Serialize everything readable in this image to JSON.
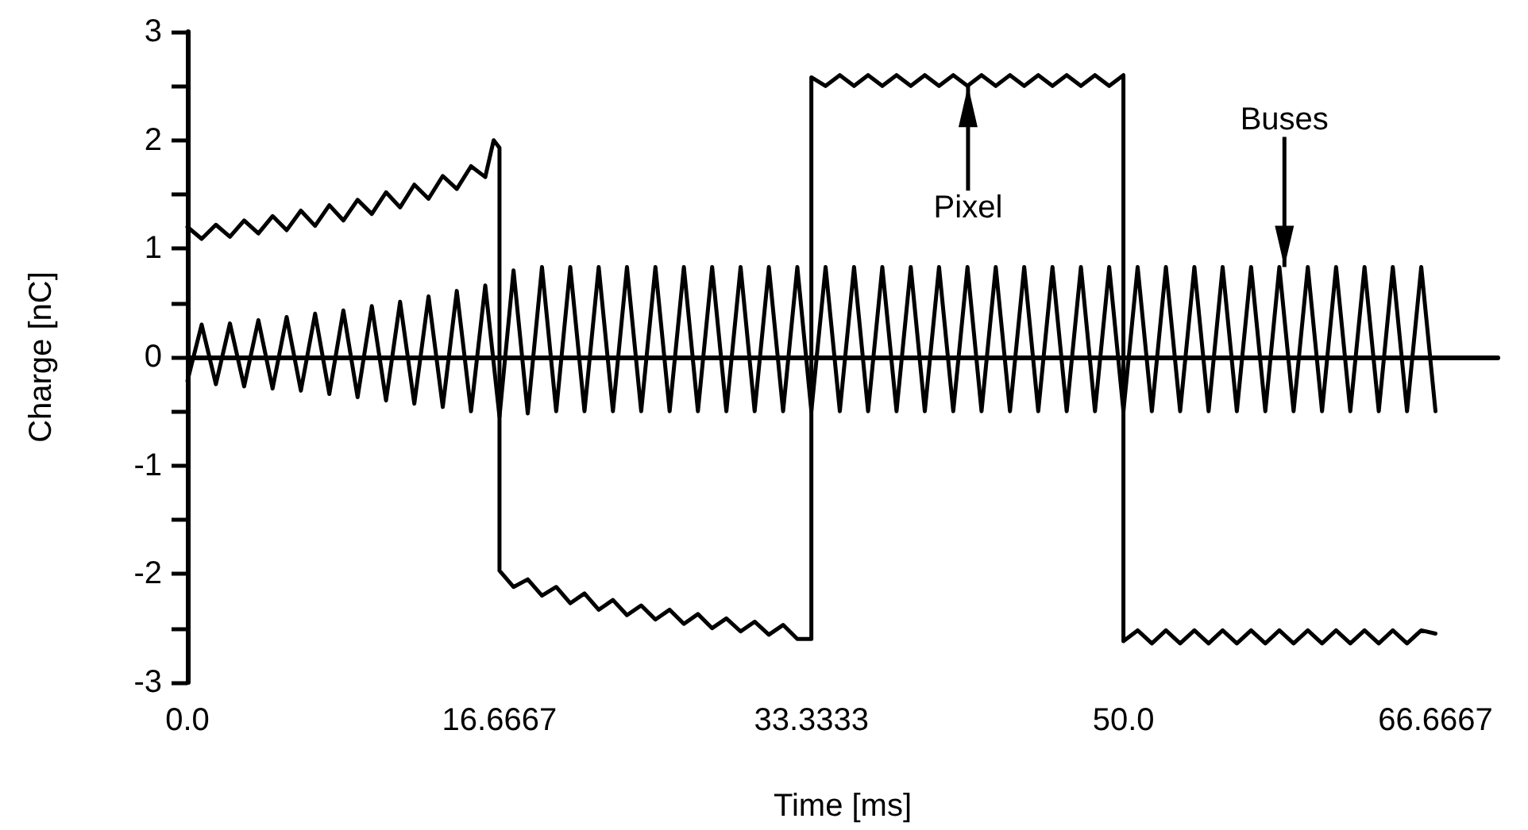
{
  "chart_data": {
    "type": "line",
    "xlabel": "Time [ms]",
    "ylabel": "Charge [nC]",
    "x": [
      0,
      0.76,
      1.52,
      2.27,
      3.03,
      3.79,
      4.55,
      5.3,
      6.06,
      6.82,
      7.58,
      8.33,
      9.09,
      9.85,
      10.61,
      11.36,
      12.12,
      12.88,
      13.64,
      14.39,
      15.15,
      15.91,
      16.67,
      17.42,
      18.18,
      18.94,
      19.7,
      20.45,
      21.21,
      21.97,
      22.73,
      23.48,
      24.24,
      25.0,
      25.76,
      26.52,
      27.27,
      28.03,
      28.79,
      29.55,
      30.3,
      31.06,
      31.82,
      32.58,
      33.33,
      34.09,
      34.85,
      35.61,
      36.36,
      37.12,
      37.88,
      38.64,
      39.39,
      40.15,
      40.91,
      41.67,
      42.42,
      43.18,
      43.94,
      44.7,
      45.45,
      46.21,
      46.97,
      47.73,
      48.48,
      49.24,
      50.0,
      50.76,
      51.52,
      52.27,
      53.03,
      53.79,
      54.55,
      55.3,
      56.06,
      56.82,
      57.58,
      58.33,
      59.09,
      59.85,
      60.61,
      61.36,
      62.12,
      62.88,
      63.64,
      64.39,
      65.15,
      65.91,
      66.67
    ],
    "series": [
      {
        "color": "#000000",
        "values": [
          -0.22,
          0.3,
          -0.25,
          0.31,
          -0.27,
          0.34,
          -0.29,
          0.37,
          -0.31,
          0.4,
          -0.34,
          0.43,
          -0.37,
          0.47,
          -0.4,
          0.51,
          -0.43,
          0.56,
          -0.46,
          0.61,
          -0.5,
          0.66,
          -0.55,
          0.8,
          -0.52,
          0.83,
          -0.5,
          0.83,
          -0.5,
          0.83,
          -0.5,
          0.83,
          -0.5,
          0.83,
          -0.5,
          0.83,
          -0.5,
          0.83,
          -0.5,
          0.83,
          -0.5,
          0.83,
          -0.5,
          0.83,
          -0.5,
          0.83,
          -0.5,
          0.83,
          -0.5,
          0.83,
          -0.5,
          0.83,
          -0.5,
          0.83,
          -0.5,
          0.83,
          -0.5,
          0.83,
          -0.5,
          0.83,
          -0.5,
          0.83,
          -0.5,
          0.83,
          -0.5,
          0.83,
          -0.5,
          0.83,
          -0.5,
          0.83,
          -0.5,
          0.83,
          -0.5,
          0.83,
          -0.5,
          0.83,
          -0.5,
          0.83,
          -0.5,
          0.83,
          -0.5,
          0.83,
          -0.5,
          0.83,
          -0.5,
          0.83,
          -0.5,
          0.83,
          -0.5
        ]
      },
      {
        "color": "#000000",
        "x": [
          0,
          0.76,
          1.52,
          2.27,
          3.03,
          3.79,
          4.55,
          5.3,
          6.06,
          6.82,
          7.58,
          8.33,
          9.09,
          9.85,
          10.61,
          11.36,
          12.12,
          12.88,
          13.64,
          14.39,
          15.15,
          15.91,
          16.36,
          16.67,
          16.67,
          17.42,
          18.18,
          18.94,
          19.7,
          20.45,
          21.21,
          21.97,
          22.73,
          23.48,
          24.24,
          25.0,
          25.76,
          26.52,
          27.27,
          28.03,
          28.79,
          29.55,
          30.3,
          31.06,
          31.82,
          32.58,
          33.33,
          33.33,
          34.09,
          34.85,
          35.61,
          36.36,
          37.12,
          37.88,
          38.64,
          39.39,
          40.15,
          40.91,
          41.67,
          42.42,
          43.18,
          43.94,
          44.7,
          45.45,
          46.21,
          46.97,
          47.73,
          48.48,
          49.24,
          50.0,
          50.0,
          50.76,
          51.52,
          52.27,
          53.03,
          53.79,
          54.55,
          55.3,
          56.06,
          56.82,
          57.58,
          58.33,
          59.09,
          59.85,
          60.61,
          61.36,
          62.12,
          62.88,
          63.64,
          64.39,
          65.15,
          65.91,
          66.67
        ],
        "values": [
          1.2,
          1.09,
          1.22,
          1.11,
          1.26,
          1.14,
          1.3,
          1.17,
          1.35,
          1.21,
          1.4,
          1.26,
          1.45,
          1.32,
          1.52,
          1.38,
          1.59,
          1.46,
          1.67,
          1.55,
          1.76,
          1.66,
          2.0,
          1.93,
          -1.97,
          -2.12,
          -2.05,
          -2.2,
          -2.12,
          -2.27,
          -2.18,
          -2.33,
          -2.24,
          -2.38,
          -2.29,
          -2.42,
          -2.33,
          -2.46,
          -2.37,
          -2.5,
          -2.41,
          -2.53,
          -2.44,
          -2.56,
          -2.47,
          -2.6,
          -2.6,
          2.58,
          2.5,
          2.6,
          2.5,
          2.6,
          2.5,
          2.6,
          2.5,
          2.6,
          2.5,
          2.6,
          2.5,
          2.6,
          2.5,
          2.6,
          2.5,
          2.6,
          2.5,
          2.6,
          2.5,
          2.6,
          2.5,
          2.6,
          -2.62,
          -2.52,
          -2.64,
          -2.52,
          -2.64,
          -2.52,
          -2.64,
          -2.52,
          -2.64,
          -2.52,
          -2.64,
          -2.52,
          -2.64,
          -2.52,
          -2.64,
          -2.52,
          -2.64,
          -2.52,
          -2.64,
          -2.52,
          -2.64,
          -2.52,
          -2.55
        ]
      }
    ],
    "annotations": [
      {
        "text": "Pixel",
        "x": 41.7,
        "y": 2.5
      },
      {
        "text": "Buses",
        "x": 58.6,
        "y": 0.83
      }
    ],
    "xlim": [
      0,
      70
    ],
    "xticks": [
      {
        "value": 0,
        "label": "0.0"
      },
      16.6667,
      33.3333,
      {
        "value": 50,
        "label": "50.0"
      },
      66.6667
    ],
    "ylim": [
      -3,
      3
    ],
    "yticks": [
      -3,
      {
        "value": -2.5,
        "label": null
      },
      -2,
      {
        "value": -1.5,
        "label": null
      },
      -1,
      {
        "value": -0.5,
        "label": null
      },
      0,
      {
        "value": 0.5,
        "label": null
      },
      1,
      {
        "value": 1.5,
        "label": null
      },
      2,
      {
        "value": 2.5,
        "label": null
      },
      3
    ],
    "marker": "none",
    "line_style": "solid"
  }
}
